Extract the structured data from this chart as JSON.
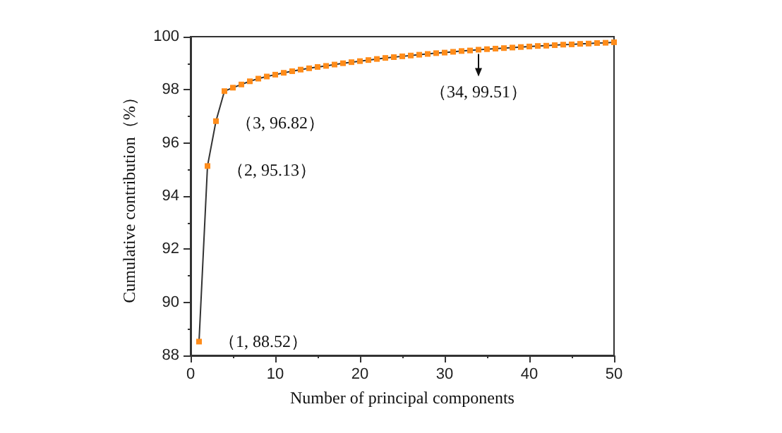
{
  "chart_data": {
    "type": "line",
    "xlabel": "Number of principal components",
    "ylabel": "Cumulative contribution（%）",
    "x": [
      1,
      2,
      3,
      4,
      5,
      6,
      7,
      8,
      9,
      10,
      11,
      12,
      13,
      14,
      15,
      16,
      17,
      18,
      19,
      20,
      21,
      22,
      23,
      24,
      25,
      26,
      27,
      28,
      29,
      30,
      31,
      32,
      33,
      34,
      35,
      36,
      37,
      38,
      39,
      40,
      41,
      42,
      43,
      44,
      45,
      46,
      47,
      48,
      49,
      50
    ],
    "series": [
      {
        "color": "#ff8c1a",
        "values": [
          88.52,
          95.13,
          96.82,
          97.95,
          98.08,
          98.2,
          98.32,
          98.42,
          98.5,
          98.57,
          98.64,
          98.7,
          98.76,
          98.81,
          98.86,
          98.9,
          98.95,
          99.0,
          99.04,
          99.08,
          99.12,
          99.16,
          99.2,
          99.23,
          99.26,
          99.29,
          99.32,
          99.35,
          99.38,
          99.4,
          99.43,
          99.46,
          99.48,
          99.51,
          99.53,
          99.55,
          99.57,
          99.59,
          99.61,
          99.63,
          99.65,
          99.66,
          99.68,
          99.7,
          99.71,
          99.73,
          99.74,
          99.76,
          99.77,
          99.79
        ]
      }
    ],
    "xlim": [
      0,
      50
    ],
    "xticks": [
      0,
      10,
      20,
      30,
      40,
      50
    ],
    "ylim": [
      88,
      100
    ],
    "yticks": [
      88,
      90,
      92,
      94,
      96,
      98,
      100
    ],
    "marker": "square",
    "line_style": "solid",
    "annotations": [
      {
        "text": "（1, 88.52）",
        "x": 1,
        "y": 88.52
      },
      {
        "text": "（2, 95.13）",
        "x": 2,
        "y": 95.13
      },
      {
        "text": "（3, 96.82）",
        "x": 3,
        "y": 96.82
      },
      {
        "text": "（34, 99.51）",
        "x": 34,
        "y": 99.51
      }
    ]
  }
}
